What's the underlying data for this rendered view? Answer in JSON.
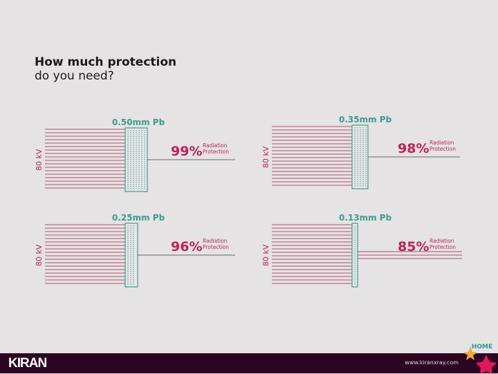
{
  "title": {
    "bold": "How much protection",
    "normal": "do you need?"
  },
  "panels": [
    {
      "thickness": "0.50mm Pb",
      "percent": "99%",
      "label1": "Radiation",
      "label2": "Protection",
      "kv": "80 kV",
      "protection": 99
    },
    {
      "thickness": "0.35mm Pb",
      "percent": "98%",
      "label1": "Radiation",
      "label2": "Protection",
      "kv": "80 kV",
      "protection": 98
    },
    {
      "thickness": "0.25mm Pb",
      "percent": "96%",
      "label1": "Radiation",
      "label2": "Protection",
      "kv": "80 kV",
      "protection": 96
    },
    {
      "thickness": "0.13mm Pb",
      "percent": "85%",
      "label1": "Radiation",
      "label2": "Protection",
      "kv": "80 kV",
      "protection": 85
    }
  ],
  "nav": {
    "home": "HOME"
  },
  "footer": {
    "logo": "KIRAN",
    "url": "www.kiranxray.com"
  },
  "colors": {
    "accent": "#c0215a",
    "teal": "#3d9b8c",
    "footer": "#2c0522"
  }
}
